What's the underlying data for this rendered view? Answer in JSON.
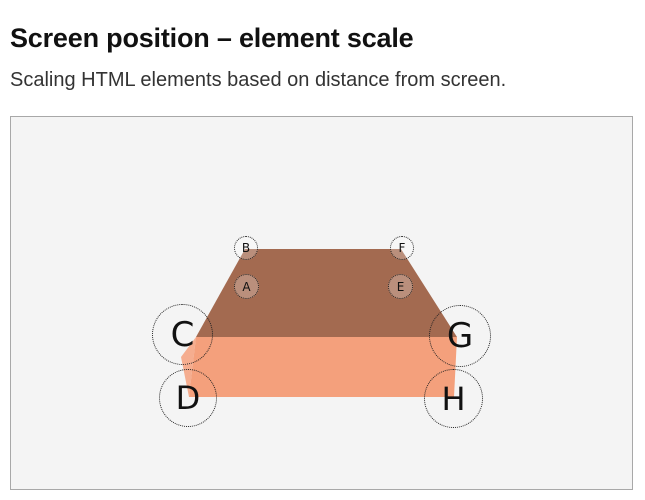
{
  "header": {
    "title": "Screen position – element scale",
    "subtitle": "Scaling HTML elements based on distance from screen."
  },
  "colors": {
    "top_face": "#a36a50",
    "front_face": "#f4a07c",
    "background": "#f4f4f4",
    "border": "#a8a8a8"
  },
  "markers": {
    "a": "A",
    "b": "B",
    "c": "C",
    "d": "D",
    "e": "E",
    "f": "F",
    "g": "G",
    "h": "H"
  }
}
